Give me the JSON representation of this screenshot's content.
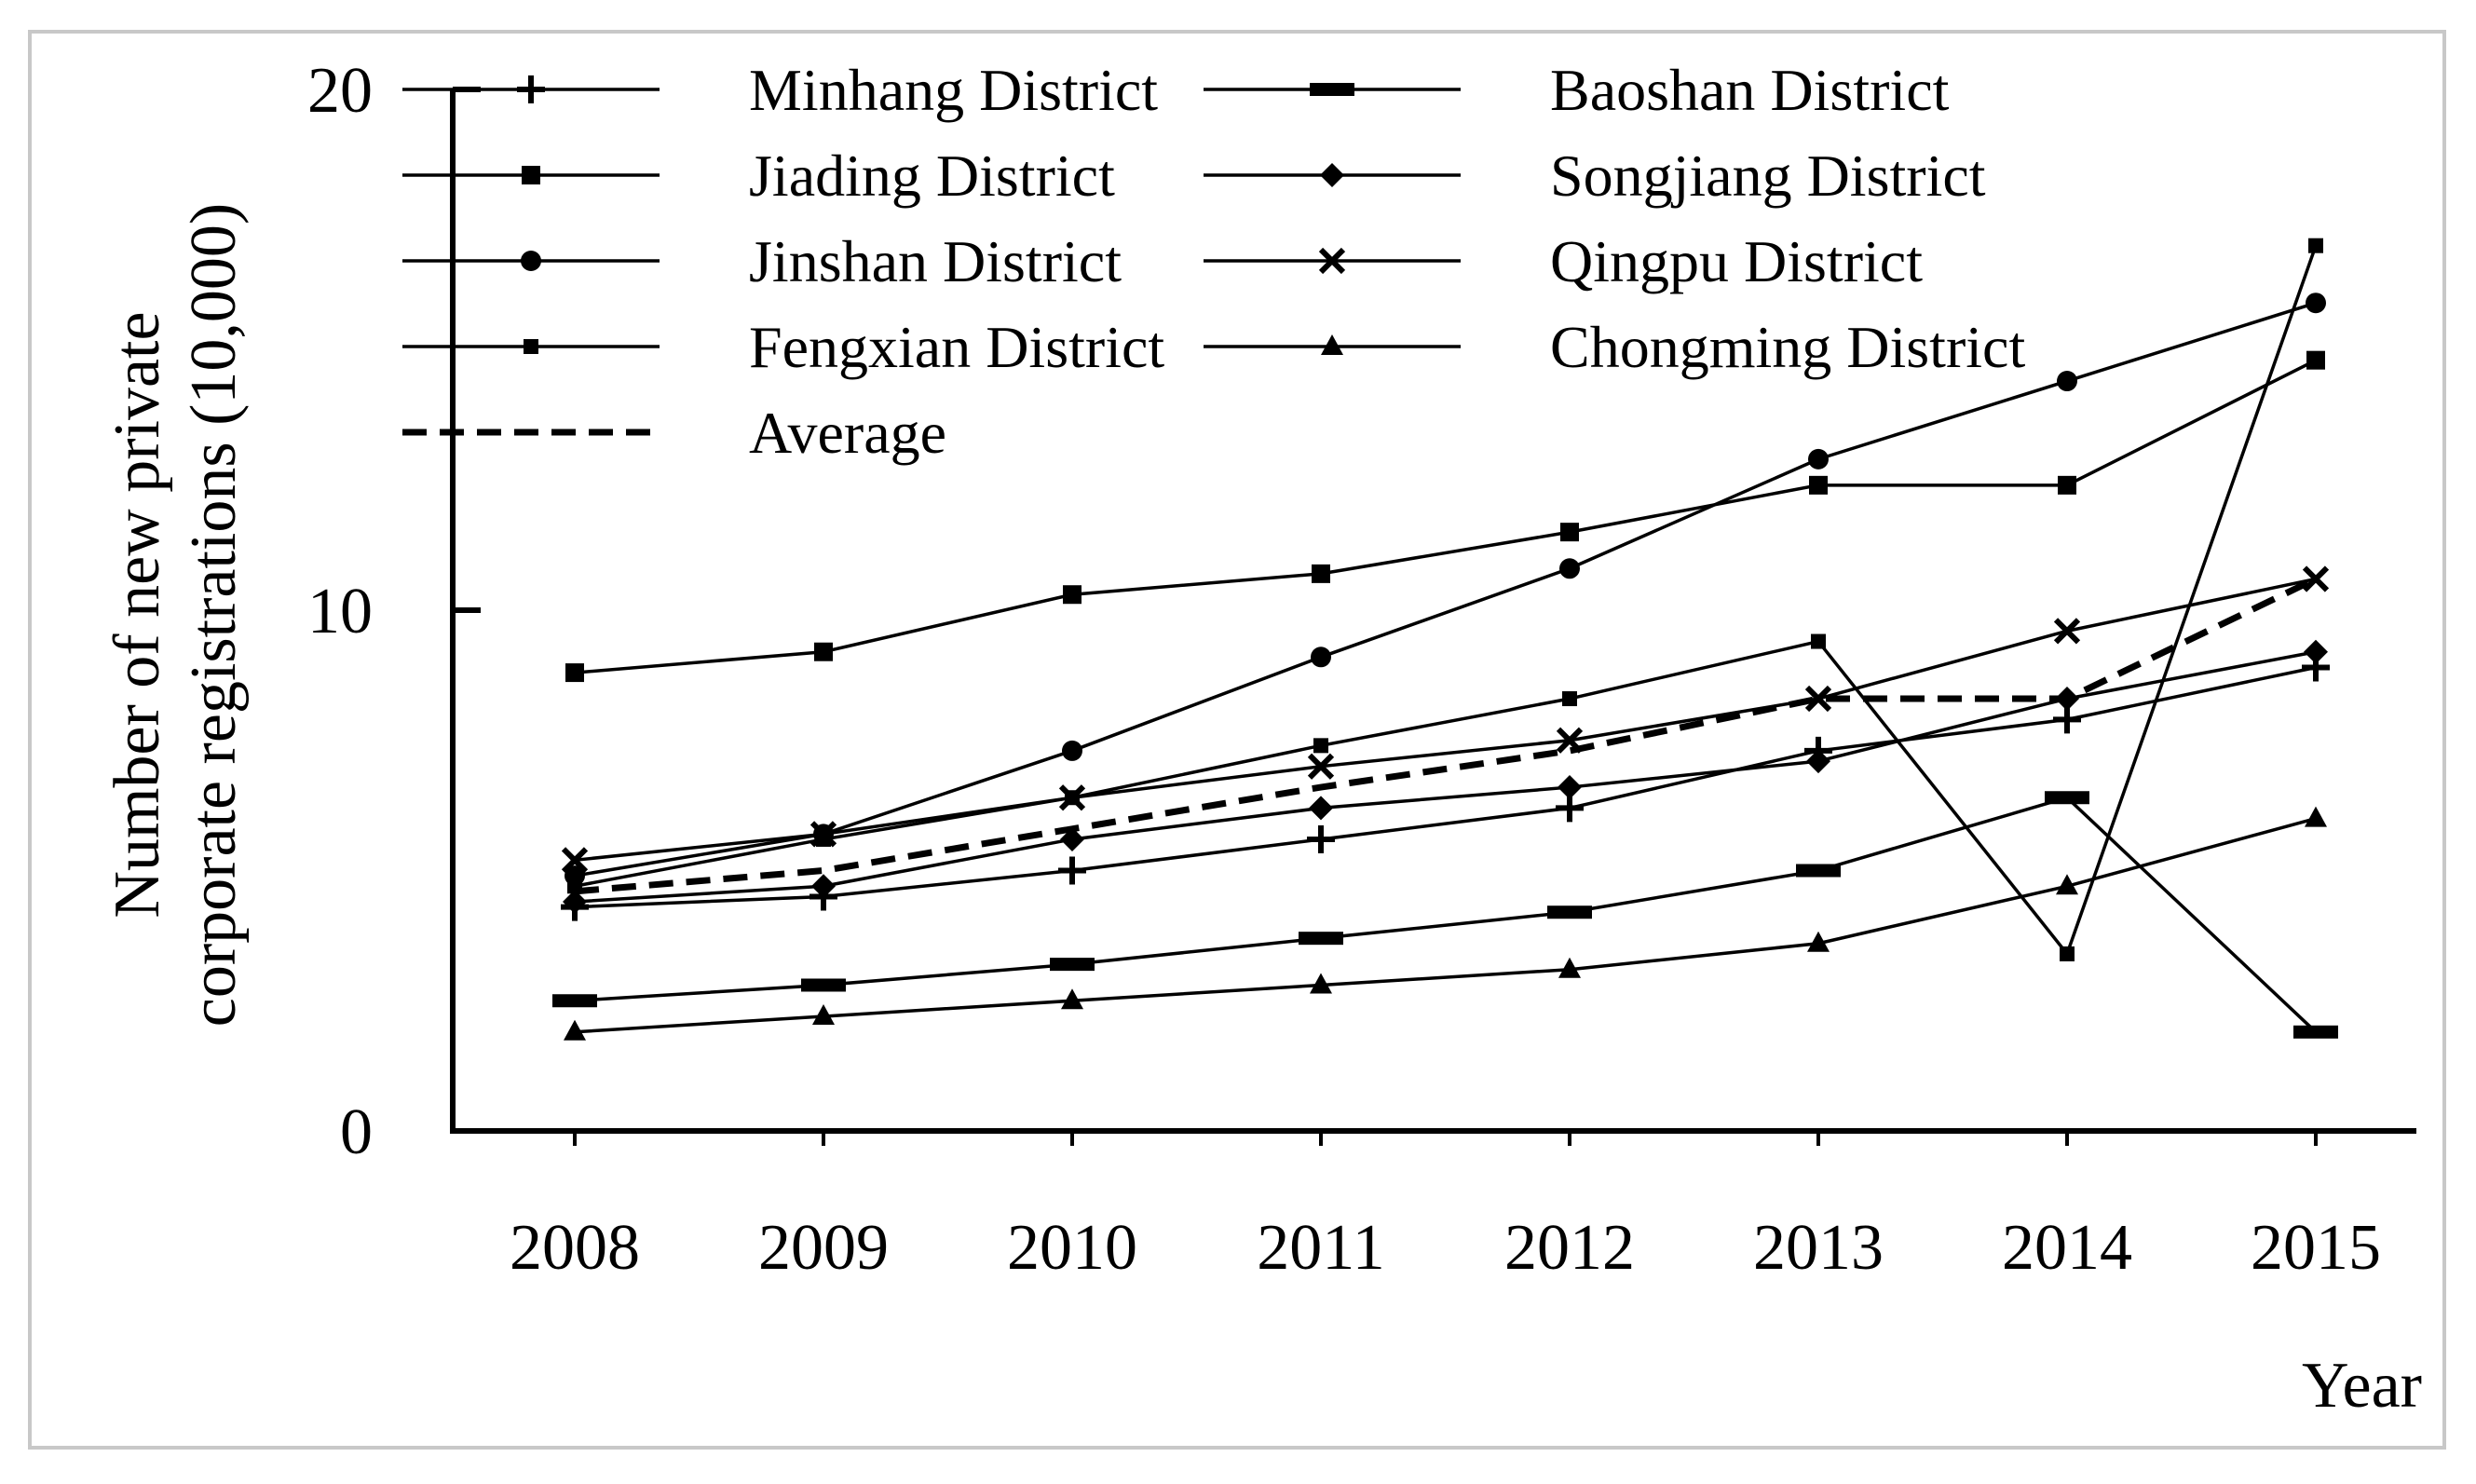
{
  "chart_data": {
    "type": "line",
    "title": "",
    "xlabel": "Year",
    "ylabel_lines": [
      "Number of new private",
      "corporate registrations (10,000)"
    ],
    "x": [
      "2008",
      "2009",
      "2010",
      "2011",
      "2012",
      "2013",
      "2014",
      "2015"
    ],
    "ylim": [
      0,
      20
    ],
    "yticks": [
      "0",
      "10",
      "20"
    ],
    "grid": false,
    "legend_position": "top",
    "series": [
      {
        "name": "Minhang District",
        "marker": "plus",
        "dashed": false,
        "values": [
          4.3,
          4.5,
          5.0,
          5.6,
          6.2,
          7.3,
          7.9,
          8.9
        ]
      },
      {
        "name": "Baoshan District",
        "marker": "dash",
        "dashed": false,
        "values": [
          2.5,
          2.8,
          3.2,
          3.7,
          4.2,
          5.0,
          6.4,
          1.9
        ]
      },
      {
        "name": "Jiading District",
        "marker": "square",
        "dashed": false,
        "values": [
          8.8,
          9.2,
          10.3,
          10.7,
          11.5,
          12.4,
          12.4,
          14.8
        ]
      },
      {
        "name": "Songjiang District",
        "marker": "diamond",
        "dashed": false,
        "values": [
          4.4,
          4.7,
          5.6,
          6.2,
          6.6,
          7.1,
          8.3,
          9.2
        ]
      },
      {
        "name": "Jinshan District",
        "marker": "circle",
        "dashed": false,
        "values": [
          4.9,
          5.7,
          7.3,
          9.1,
          10.8,
          12.9,
          14.4,
          15.9
        ]
      },
      {
        "name": "Qingpu District",
        "marker": "x",
        "dashed": false,
        "values": [
          5.2,
          5.7,
          6.4,
          7.0,
          7.5,
          8.3,
          9.6,
          10.6
        ]
      },
      {
        "name": "Fengxian District",
        "marker": "small-square",
        "dashed": false,
        "values": [
          4.7,
          5.6,
          6.4,
          7.4,
          8.3,
          9.4,
          3.4,
          17.0
        ]
      },
      {
        "name": "Chongming District",
        "marker": "triangle",
        "dashed": false,
        "values": [
          1.9,
          2.2,
          2.5,
          2.8,
          3.1,
          3.6,
          4.7,
          6.0
        ]
      },
      {
        "name": "Average",
        "marker": "none",
        "dashed": true,
        "values": [
          4.6,
          5.0,
          5.8,
          6.6,
          7.3,
          8.3,
          8.3,
          10.6
        ]
      }
    ]
  }
}
